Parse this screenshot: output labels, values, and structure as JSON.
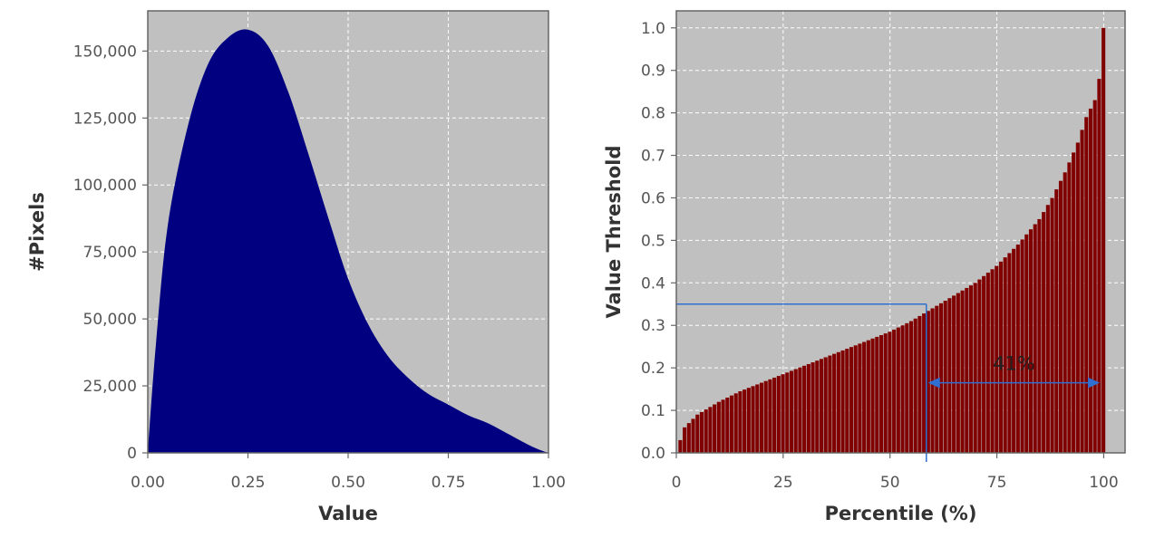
{
  "chart_data": [
    {
      "type": "area",
      "xlabel": "Value",
      "ylabel": "#Pixels",
      "xlim": [
        0,
        1
      ],
      "ylim": [
        0,
        165000
      ],
      "x_ticks": [
        {
          "value": 0,
          "label": "0.00"
        },
        {
          "value": 0.25,
          "label": "0.25"
        },
        {
          "value": 0.5,
          "label": "0.50"
        },
        {
          "value": 0.75,
          "label": "0.75"
        },
        {
          "value": 1,
          "label": "1.00"
        }
      ],
      "y_ticks": [
        {
          "value": 0,
          "label": "0"
        },
        {
          "value": 25000,
          "label": "25,000"
        },
        {
          "value": 50000,
          "label": "50,000"
        },
        {
          "value": 75000,
          "label": "75,000"
        },
        {
          "value": 100000,
          "label": "100,000"
        },
        {
          "value": 125000,
          "label": "125,000"
        },
        {
          "value": 150000,
          "label": "150,000"
        }
      ],
      "grid": true,
      "colors": {
        "fill": "#000080",
        "background": "#c0c0c0",
        "grid": "#ffffff"
      },
      "x": [
        0.0,
        0.02,
        0.05,
        0.1,
        0.15,
        0.2,
        0.25,
        0.3,
        0.35,
        0.4,
        0.45,
        0.5,
        0.55,
        0.6,
        0.65,
        0.7,
        0.75,
        0.8,
        0.85,
        0.9,
        0.95,
        0.98,
        1.0
      ],
      "values": [
        0,
        40000,
        85000,
        122000,
        145000,
        155000,
        158000,
        152000,
        135000,
        112000,
        88000,
        65000,
        48000,
        36000,
        28000,
        22000,
        18000,
        14000,
        11000,
        7000,
        3000,
        1000,
        0
      ]
    },
    {
      "type": "bar",
      "xlabel": "Percentile (%)",
      "ylabel": "Value Threshold",
      "xlim": [
        0,
        105
      ],
      "ylim": [
        0,
        1.04
      ],
      "x_ticks": [
        {
          "value": 0,
          "label": "0"
        },
        {
          "value": 25,
          "label": "25"
        },
        {
          "value": 50,
          "label": "50"
        },
        {
          "value": 75,
          "label": "75"
        },
        {
          "value": 100,
          "label": "100"
        }
      ],
      "y_ticks": [
        {
          "value": 0,
          "label": "0.0"
        },
        {
          "value": 0.1,
          "label": "0.1"
        },
        {
          "value": 0.2,
          "label": "0.2"
        },
        {
          "value": 0.3,
          "label": "0.3"
        },
        {
          "value": 0.4,
          "label": "0.4"
        },
        {
          "value": 0.5,
          "label": "0.5"
        },
        {
          "value": 0.6,
          "label": "0.6"
        },
        {
          "value": 0.7,
          "label": "0.7"
        },
        {
          "value": 0.8,
          "label": "0.8"
        },
        {
          "value": 0.9,
          "label": "0.9"
        },
        {
          "value": 1.0,
          "label": "1.0"
        }
      ],
      "grid": true,
      "colors": {
        "bar": "#800000",
        "background": "#c0c0c0",
        "grid": "#ffffff",
        "annotation": "#2f6fd1"
      },
      "curve_x": [
        1,
        2,
        5,
        10,
        15,
        20,
        25,
        30,
        35,
        40,
        45,
        50,
        55,
        60,
        65,
        70,
        75,
        80,
        85,
        88,
        91,
        94,
        96,
        98,
        99,
        100
      ],
      "curve_y": [
        0.03,
        0.06,
        0.09,
        0.12,
        0.145,
        0.165,
        0.185,
        0.205,
        0.225,
        0.245,
        0.265,
        0.285,
        0.31,
        0.34,
        0.37,
        0.4,
        0.44,
        0.49,
        0.55,
        0.6,
        0.66,
        0.73,
        0.79,
        0.83,
        0.88,
        1.0
      ],
      "annotation": {
        "label": "41%",
        "threshold_value": 0.35,
        "threshold_percentile": 58.5,
        "arrow_from": 58.5,
        "arrow_to": 99.5,
        "arrow_y": 0.165
      }
    }
  ]
}
